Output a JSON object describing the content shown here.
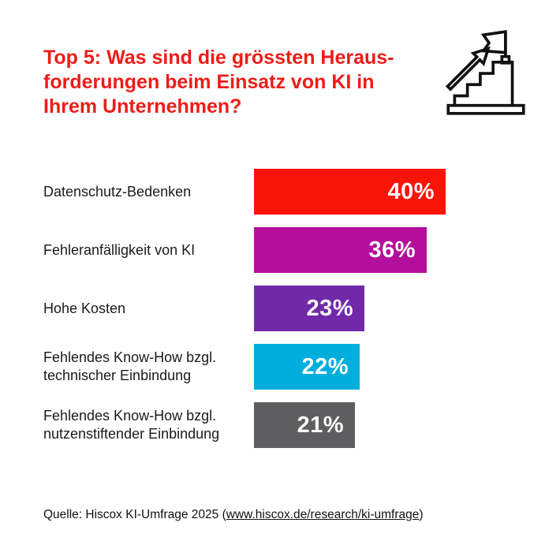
{
  "title": {
    "full": "Top 5: Was sind die grössten Herausforderungen beim Einsatz von KI in Ihrem Unternehmen?",
    "lines": [
      "Top 5: Was sind die grössten Heraus-",
      "forderungen beim Einsatz von KI in",
      "Ihrem Unternehmen?"
    ],
    "color": "#ee1c18"
  },
  "icon": {
    "name": "stairs-flag-arrow-icon",
    "meaning": "staircase with upward arrow and goal flag",
    "stroke_color": "#111111"
  },
  "chart_data": {
    "type": "bar",
    "orientation": "horizontal",
    "title": "Top 5: Was sind die grössten Herausforderungen beim Einsatz von KI in Ihrem Unternehmen?",
    "categories": [
      "Datenschutz-Bedenken",
      "Fehleranfälligkeit von KI",
      "Hohe Kosten",
      "Fehlendes Know-How bzgl. technischer Einbindung",
      "Fehlendes Know-How bzgl. nutzenstiftender Einbindung"
    ],
    "values": [
      40,
      36,
      23,
      22,
      21
    ],
    "value_labels": [
      "40%",
      "36%",
      "23%",
      "22%",
      "21%"
    ],
    "bar_colors": [
      "#fa1405",
      "#b30f9c",
      "#7129a9",
      "#00aede",
      "#5e5d60"
    ],
    "value_label_color": "#ffffff",
    "xlim": [
      0,
      40
    ],
    "grid": false,
    "legend": false
  },
  "source": {
    "prefix": "Quelle: Hiscox KI-Umfrage 2025 (",
    "link": "www.hiscox.de/research/ki-umfrage",
    "suffix": ")"
  }
}
